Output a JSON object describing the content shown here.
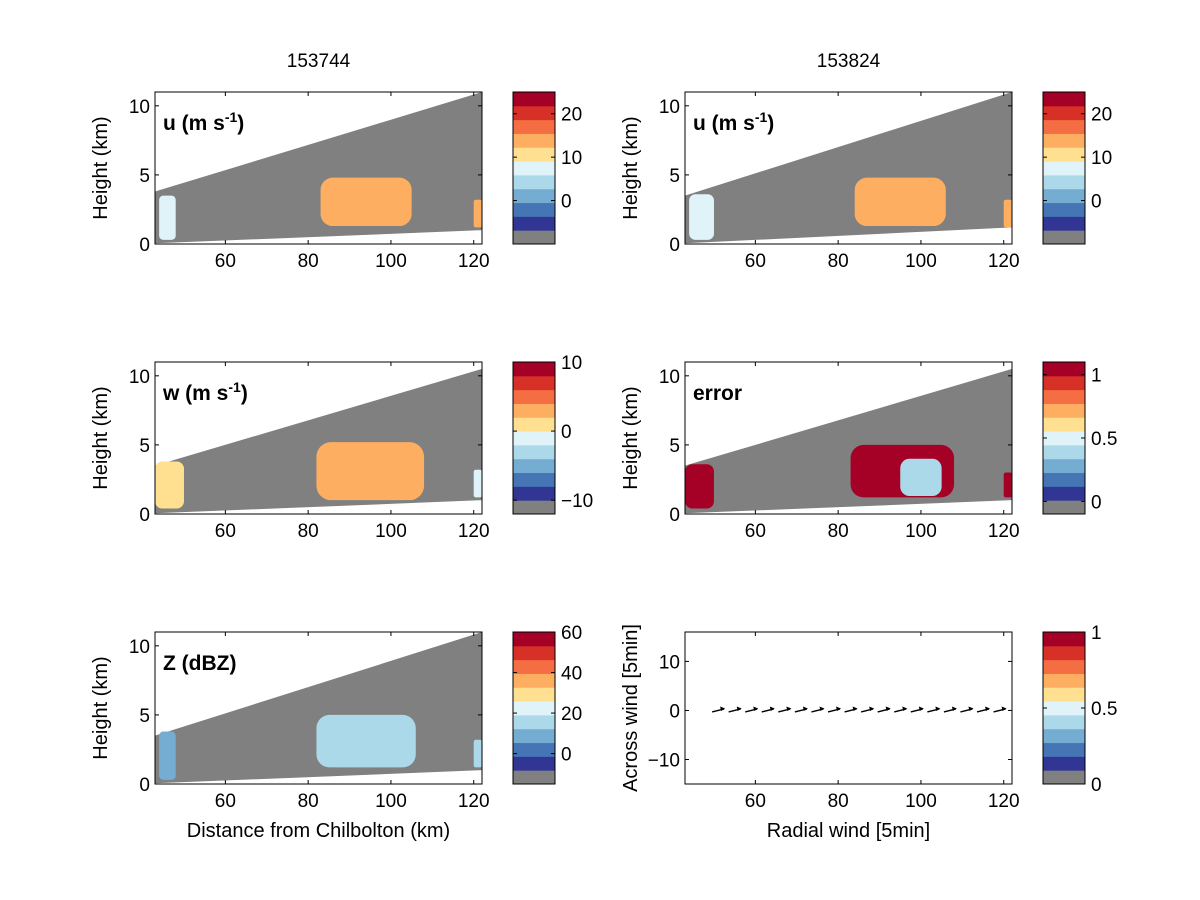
{
  "chart_data": [
    {
      "type": "heatmap",
      "title": "153744",
      "annotation": "u (m s-1)",
      "annotation_main": "u (m s",
      "annotation_sup": "-1",
      "annotation_close": ")",
      "ylabel": "Height (km)",
      "xlabel": "",
      "xlim": [
        43,
        122
      ],
      "ylim": [
        0,
        11
      ],
      "xticks": [
        60,
        80,
        100,
        120
      ],
      "yticks": [
        0,
        5,
        10
      ],
      "colorbar": {
        "ticks": [
          0,
          10,
          20
        ],
        "vmin": -10,
        "vmax": 25
      },
      "beam_top": {
        "x": [
          43,
          122
        ],
        "y": [
          3.8,
          11.0
        ]
      },
      "beam_bottom": {
        "x": [
          43,
          122
        ],
        "y": [
          0.05,
          1.0
        ]
      },
      "echo_regions": [
        {
          "x_range": [
            44,
            48
          ],
          "y_range": [
            0.3,
            3.5
          ],
          "value": 5
        },
        {
          "x_range": [
            83,
            105
          ],
          "y_range": [
            1.3,
            4.8
          ],
          "value": 12
        },
        {
          "x_range": [
            120,
            122
          ],
          "y_range": [
            1.2,
            3.2
          ],
          "value": 13
        }
      ]
    },
    {
      "type": "heatmap",
      "title": "153824",
      "annotation": "u (m s-1)",
      "annotation_main": "u (m s",
      "annotation_sup": "-1",
      "annotation_close": ")",
      "ylabel": "Height (km)",
      "xlabel": "",
      "xlim": [
        43,
        122
      ],
      "ylim": [
        0,
        11
      ],
      "xticks": [
        60,
        80,
        100,
        120
      ],
      "yticks": [
        0,
        5,
        10
      ],
      "colorbar": {
        "ticks": [
          0,
          10,
          20
        ],
        "vmin": -10,
        "vmax": 25
      },
      "beam_top": {
        "x": [
          43,
          122
        ],
        "y": [
          3.5,
          11.0
        ]
      },
      "beam_bottom": {
        "x": [
          43,
          122
        ],
        "y": [
          0.05,
          1.2
        ]
      },
      "echo_regions": [
        {
          "x_range": [
            44,
            50
          ],
          "y_range": [
            0.3,
            3.6
          ],
          "value": 6
        },
        {
          "x_range": [
            84,
            106
          ],
          "y_range": [
            1.3,
            4.8
          ],
          "value": 11
        },
        {
          "x_range": [
            120,
            122
          ],
          "y_range": [
            1.2,
            3.2
          ],
          "value": 13
        }
      ]
    },
    {
      "type": "heatmap",
      "title": "",
      "annotation": "w (m s-1)",
      "annotation_main": "w (m s",
      "annotation_sup": "-1",
      "annotation_close": ")",
      "ylabel": "Height (km)",
      "xlabel": "",
      "xlim": [
        43,
        122
      ],
      "ylim": [
        0,
        11
      ],
      "xticks": [
        60,
        80,
        100,
        120
      ],
      "yticks": [
        0,
        5,
        10
      ],
      "colorbar": {
        "ticks": [
          -10,
          0,
          10
        ],
        "vmin": -12,
        "vmax": 10
      },
      "beam_top": {
        "x": [
          43,
          122
        ],
        "y": [
          3.5,
          10.5
        ]
      },
      "beam_bottom": {
        "x": [
          43,
          122
        ],
        "y": [
          0.05,
          1.0
        ]
      },
      "echo_regions": [
        {
          "x_range": [
            43,
            50
          ],
          "y_range": [
            0.4,
            3.8
          ],
          "value": 0
        },
        {
          "x_range": [
            82,
            108
          ],
          "y_range": [
            1.0,
            5.2
          ],
          "value": 2
        },
        {
          "x_range": [
            120,
            122
          ],
          "y_range": [
            1.2,
            3.2
          ],
          "value": -3
        }
      ]
    },
    {
      "type": "heatmap",
      "title": "",
      "annotation": "error",
      "annotation_main": "error",
      "annotation_sup": "",
      "annotation_close": "",
      "ylabel": "Height (km)",
      "xlabel": "",
      "xlim": [
        43,
        122
      ],
      "ylim": [
        0,
        11
      ],
      "xticks": [
        60,
        80,
        100,
        120
      ],
      "yticks": [
        0,
        5,
        10
      ],
      "colorbar": {
        "ticks": [
          0,
          0.5,
          1
        ],
        "vmin": -0.1,
        "vmax": 1.1
      },
      "beam_top": {
        "x": [
          43,
          122
        ],
        "y": [
          3.5,
          10.5
        ]
      },
      "beam_bottom": {
        "x": [
          43,
          122
        ],
        "y": [
          0.05,
          1.0
        ]
      },
      "echo_regions": [
        {
          "x_range": [
            43,
            50
          ],
          "y_range": [
            0.4,
            3.6
          ],
          "value": 1.0
        },
        {
          "x_range": [
            83,
            108
          ],
          "y_range": [
            1.2,
            5.0
          ],
          "value": 1.0
        },
        {
          "x_range": [
            95,
            105
          ],
          "y_range": [
            1.3,
            4.0
          ],
          "value": 0.35
        },
        {
          "x_range": [
            120,
            122
          ],
          "y_range": [
            1.2,
            3.0
          ],
          "value": 1.0
        }
      ]
    },
    {
      "type": "heatmap",
      "title": "",
      "annotation": "Z (dBZ)",
      "annotation_main": "Z (dBZ)",
      "annotation_sup": "",
      "annotation_close": "",
      "ylabel": "Height (km)",
      "xlabel": "Distance from Chilbolton (km)",
      "xlim": [
        43,
        122
      ],
      "ylim": [
        0,
        11
      ],
      "xticks": [
        60,
        80,
        100,
        120
      ],
      "yticks": [
        0,
        5,
        10
      ],
      "colorbar": {
        "ticks": [
          0,
          20,
          40,
          60
        ],
        "vmin": -15,
        "vmax": 60
      },
      "beam_top": {
        "x": [
          43,
          122
        ],
        "y": [
          3.5,
          11.0
        ]
      },
      "beam_bottom": {
        "x": [
          43,
          122
        ],
        "y": [
          0.05,
          1.0
        ]
      },
      "echo_regions": [
        {
          "x_range": [
            44,
            48
          ],
          "y_range": [
            0.3,
            3.8
          ],
          "value": 5
        },
        {
          "x_range": [
            82,
            106
          ],
          "y_range": [
            1.2,
            5.0
          ],
          "value": 12
        },
        {
          "x_range": [
            120,
            122
          ],
          "y_range": [
            1.2,
            3.2
          ],
          "value": 8
        }
      ]
    },
    {
      "type": "scatter",
      "title": "",
      "annotation": "",
      "ylabel": "Across wind [5min]",
      "xlabel": "Radial wind [5min]",
      "xlim": [
        43,
        122
      ],
      "ylim": [
        -15,
        16
      ],
      "xticks": [
        60,
        80,
        100,
        120
      ],
      "yticks": [
        -10,
        0,
        10
      ],
      "colorbar": {
        "ticks": [
          0,
          0.5,
          1
        ],
        "vmin": 0,
        "vmax": 1
      },
      "x": [
        51,
        55,
        59,
        63,
        67,
        71,
        75,
        79,
        83,
        87,
        91,
        95,
        99,
        103,
        107,
        111,
        115,
        119
      ],
      "y": [
        0,
        0,
        0,
        0,
        0,
        0,
        0,
        0,
        0,
        0,
        0,
        0,
        0,
        0,
        0,
        0,
        0,
        0
      ]
    }
  ],
  "colormap": [
    "#808080",
    "#313695",
    "#4575b4",
    "#74add1",
    "#abd9e9",
    "#e0f3f8",
    "#fee090",
    "#fdae61",
    "#f46d43",
    "#d73027",
    "#a50026"
  ],
  "beam_color": "#808080"
}
